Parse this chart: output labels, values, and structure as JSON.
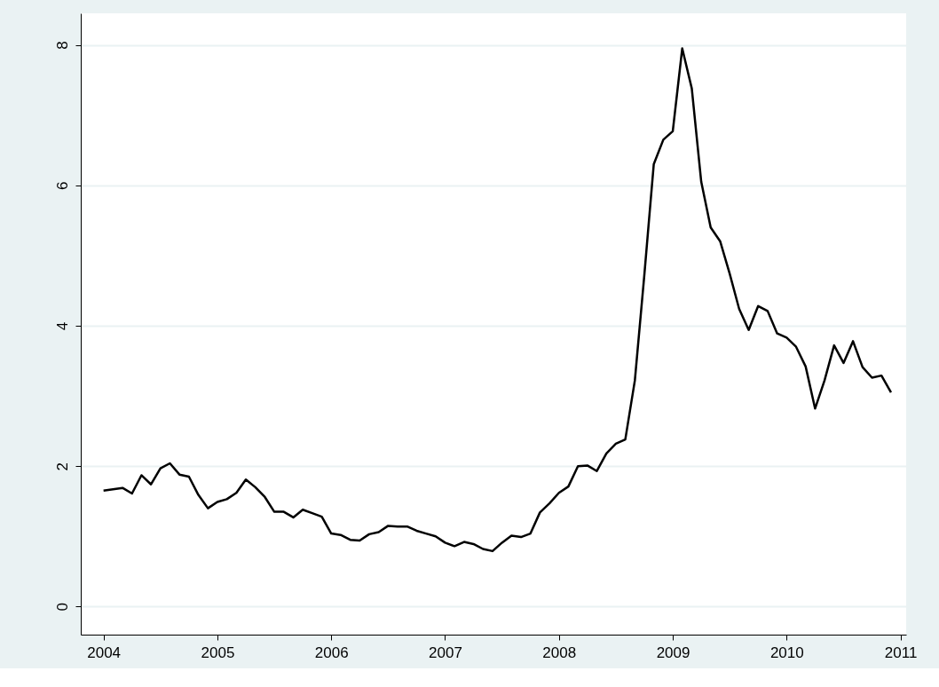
{
  "chart_data": {
    "type": "line",
    "x": [
      2004.0,
      2004.083,
      2004.167,
      2004.25,
      2004.333,
      2004.417,
      2004.5,
      2004.583,
      2004.667,
      2004.75,
      2004.833,
      2004.917,
      2005.0,
      2005.083,
      2005.167,
      2005.25,
      2005.333,
      2005.417,
      2005.5,
      2005.583,
      2005.667,
      2005.75,
      2005.833,
      2005.917,
      2006.0,
      2006.083,
      2006.167,
      2006.25,
      2006.333,
      2006.417,
      2006.5,
      2006.583,
      2006.667,
      2006.75,
      2006.833,
      2006.917,
      2007.0,
      2007.083,
      2007.167,
      2007.25,
      2007.333,
      2007.417,
      2007.5,
      2007.583,
      2007.667,
      2007.75,
      2007.833,
      2007.917,
      2008.0,
      2008.083,
      2008.167,
      2008.25,
      2008.333,
      2008.417,
      2008.5,
      2008.583,
      2008.667,
      2008.75,
      2008.833,
      2008.917,
      2009.0,
      2009.083,
      2009.167,
      2009.25,
      2009.333,
      2009.417,
      2009.5,
      2009.583,
      2009.667,
      2009.75,
      2009.833,
      2009.917,
      2010.0,
      2010.083,
      2010.167,
      2010.25,
      2010.333,
      2010.417,
      2010.5,
      2010.583,
      2010.667,
      2010.75,
      2010.833,
      2010.917
    ],
    "series": [
      {
        "color": "#000000",
        "values": [
          1.65,
          1.67,
          1.69,
          1.61,
          1.87,
          1.74,
          1.97,
          2.04,
          1.88,
          1.85,
          1.59,
          1.4,
          1.49,
          1.53,
          1.62,
          1.81,
          1.7,
          1.56,
          1.35,
          1.35,
          1.27,
          1.38,
          1.33,
          1.28,
          1.04,
          1.02,
          0.95,
          0.94,
          1.03,
          1.06,
          1.15,
          1.14,
          1.14,
          1.08,
          1.04,
          1.0,
          0.91,
          0.86,
          0.92,
          0.89,
          0.82,
          0.79,
          0.91,
          1.01,
          0.99,
          1.04,
          1.34,
          1.47,
          1.62,
          1.71,
          2.0,
          2.01,
          1.93,
          2.18,
          2.32,
          2.38,
          3.22,
          4.72,
          6.3,
          6.65,
          6.77,
          7.95,
          7.38,
          6.05,
          5.4,
          5.2,
          4.74,
          4.24,
          3.94,
          4.28,
          4.21,
          3.89,
          3.83,
          3.7,
          3.42,
          2.82,
          3.22,
          3.72,
          3.47,
          3.78,
          3.41,
          3.26,
          3.29,
          3.05
        ]
      }
    ],
    "xlim": [
      2003.8,
      2011.05
    ],
    "xticks": [
      2004,
      2005,
      2006,
      2007,
      2008,
      2009,
      2010,
      2011
    ],
    "ylim": [
      -0.4,
      8.45
    ],
    "yticks": [
      0,
      2,
      4,
      6,
      8
    ],
    "grid": "y",
    "legend": false,
    "marker": "none",
    "line_style": "solid"
  }
}
